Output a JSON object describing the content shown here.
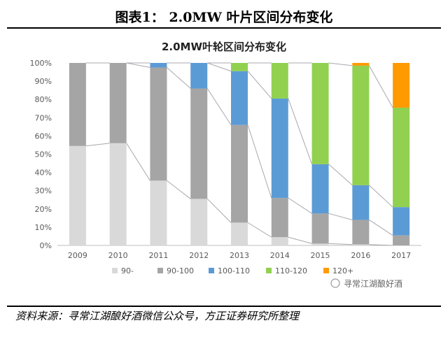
{
  "header": {
    "title": "图表1： 2.0MW 叶片区间分布变化"
  },
  "footer": {
    "source": "资料来源：寻常江湖酿好酒微信公众号，方正证券研究所整理"
  },
  "watermark": {
    "text": "寻常江湖酿好酒"
  },
  "chart_data": {
    "type": "bar",
    "stacked": true,
    "percent": true,
    "title": "2.0MW叶轮区间分布变化",
    "xlabel": "",
    "ylabel": "",
    "ylim": [
      0,
      100
    ],
    "yticks": [
      "0%",
      "10%",
      "20%",
      "30%",
      "40%",
      "50%",
      "60%",
      "70%",
      "80%",
      "90%",
      "100%"
    ],
    "categories": [
      "2009",
      "2010",
      "2011",
      "2012",
      "2013",
      "2014",
      "2015",
      "2016",
      "2017"
    ],
    "series": [
      {
        "name": "90-",
        "color": "#d9d9d9",
        "values": [
          54.5,
          56,
          35.5,
          25.5,
          12.5,
          4.5,
          1,
          0.5,
          0
        ]
      },
      {
        "name": "90-100",
        "color": "#a5a5a5",
        "values": [
          45.5,
          44,
          62,
          60.5,
          53.5,
          21.5,
          16.5,
          13.5,
          5.5
        ]
      },
      {
        "name": "100-110",
        "color": "#5b9bd5",
        "values": [
          0,
          0,
          2.5,
          14,
          29.5,
          54.5,
          27,
          19,
          15.5
        ]
      },
      {
        "name": "110-120",
        "color": "#92d050",
        "values": [
          0,
          0,
          0,
          0,
          4.5,
          19.5,
          55.5,
          65.5,
          54.5
        ]
      },
      {
        "name": "120+",
        "color": "#ff9a00",
        "values": [
          0,
          0,
          0,
          0,
          0,
          0,
          0,
          1.5,
          24.5
        ]
      }
    ],
    "legend_position": "bottom",
    "grid": false,
    "connector_lines": true
  }
}
